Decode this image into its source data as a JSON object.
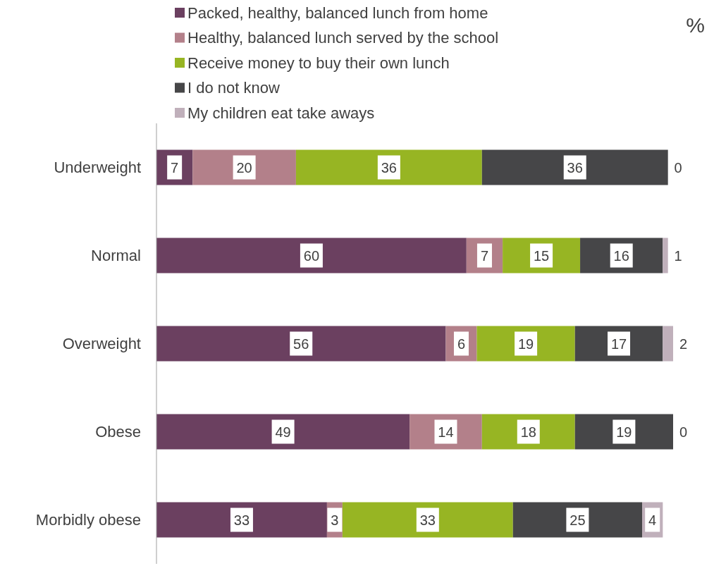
{
  "chart_data": {
    "type": "bar",
    "orientation": "horizontal",
    "stacked": true,
    "data_labels": true,
    "legend": "top",
    "annotations": [
      "%"
    ],
    "categories": [
      "Underweight",
      "Normal",
      "Overweight",
      "Obese",
      "Morbidly obese"
    ],
    "series": [
      {
        "name": "Packed, healthy, balanced lunch from home",
        "color": "#6b4060",
        "values": [
          7,
          60,
          56,
          49,
          33
        ]
      },
      {
        "name": "Healthy, balanced lunch served by the school",
        "color": "#b3808a",
        "values": [
          20,
          7,
          6,
          14,
          3
        ]
      },
      {
        "name": "Receive money to buy their own lunch",
        "color": "#97b523",
        "values": [
          36,
          15,
          19,
          18,
          33
        ]
      },
      {
        "name": "I do not know",
        "color": "#464648",
        "values": [
          36,
          16,
          17,
          19,
          25
        ]
      },
      {
        "name": "My children eat take aways",
        "color": "#c0b0bb",
        "values": [
          0,
          1,
          2,
          0,
          4
        ]
      }
    ]
  }
}
